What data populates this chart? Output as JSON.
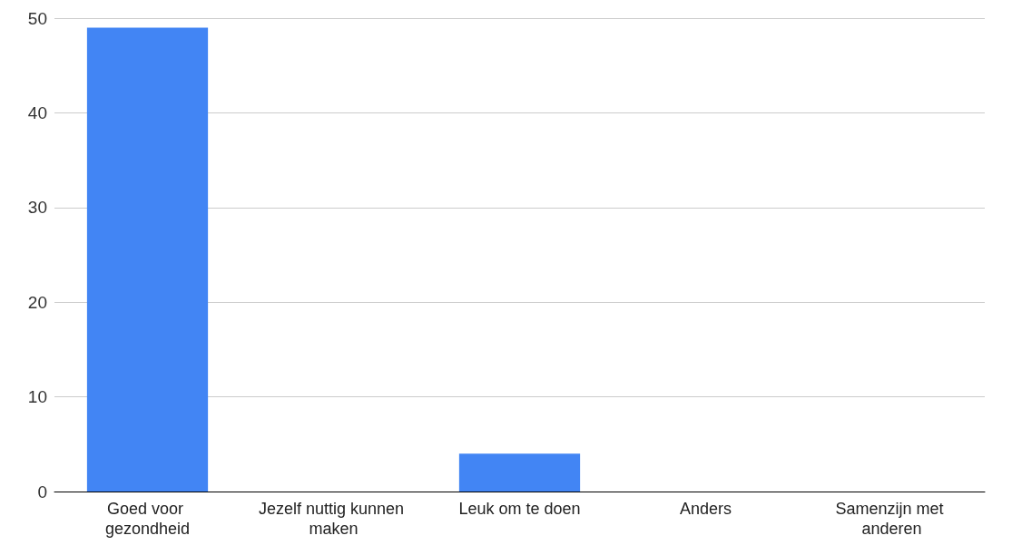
{
  "chart_data": {
    "type": "bar",
    "categories": [
      "Goed voor gezondheid",
      "Jezelf nuttig kunnen maken",
      "Leuk om te doen",
      "Anders",
      "Samenzijn met anderen"
    ],
    "values": [
      49,
      0,
      4,
      0,
      0
    ],
    "color": "#4285f4",
    "ylim": [
      0,
      50
    ],
    "yticks": [
      0,
      10,
      20,
      30,
      40,
      50
    ],
    "grid": "y"
  }
}
